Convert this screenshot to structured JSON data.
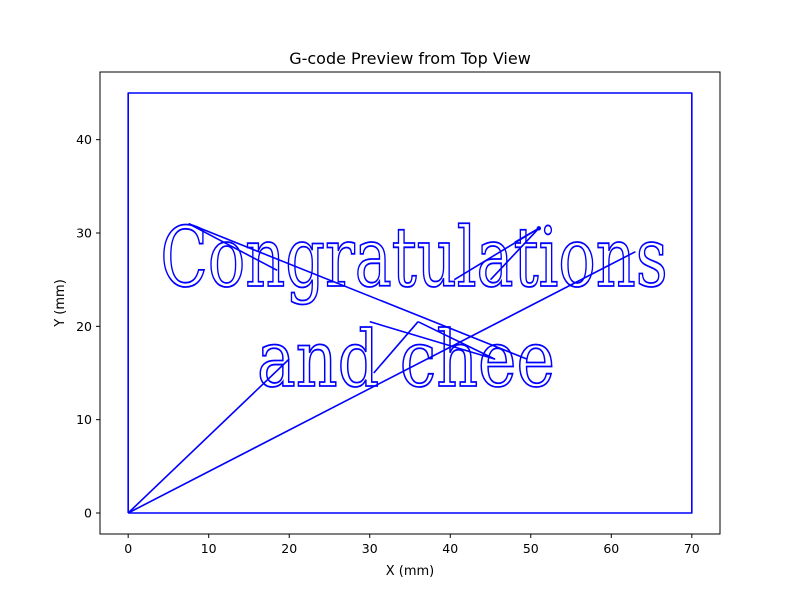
{
  "chart_data": {
    "type": "line",
    "title": "G-code Preview from Top View",
    "xlabel": "X (mm)",
    "ylabel": "Y (mm)",
    "xlim": [
      -3.5,
      73.5
    ],
    "ylim": [
      -2.25,
      47.25
    ],
    "xticks": [
      0,
      10,
      20,
      30,
      40,
      50,
      60,
      70
    ],
    "yticks": [
      0,
      10,
      20,
      30,
      40
    ],
    "grid": false,
    "series_color": "#0000ff",
    "text_line1": "Congratulations",
    "text_line2": "and chee",
    "border": {
      "x": [
        0,
        70,
        70,
        0,
        0
      ],
      "y": [
        0,
        0,
        45,
        45,
        0
      ]
    },
    "travel_moves": [
      {
        "x": [
          0,
          20
        ],
        "y": [
          0,
          16.5
        ]
      },
      {
        "x": [
          0,
          63
        ],
        "y": [
          0,
          28
        ]
      },
      {
        "x": [
          7.5,
          49.5
        ],
        "y": [
          31,
          16.5
        ]
      },
      {
        "x": [
          7.5,
          18.5
        ],
        "y": [
          31,
          26
        ]
      },
      {
        "x": [
          30,
          45.5,
          36
        ],
        "y": [
          20.5,
          16.5,
          20.5
        ]
      },
      {
        "x": [
          36,
          30.5
        ],
        "y": [
          20.5,
          15
        ]
      },
      {
        "x": [
          40.5,
          51,
          45
        ],
        "y": [
          25,
          30.5,
          25
        ]
      },
      {
        "x": [
          51,
          48
        ],
        "y": [
          30.5,
          29
        ]
      }
    ]
  }
}
